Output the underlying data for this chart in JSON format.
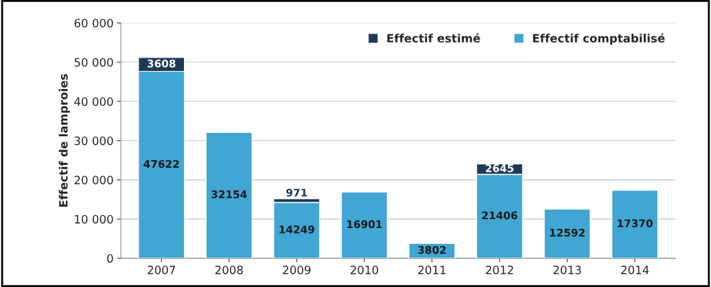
{
  "chart_data": {
    "type": "bar",
    "stacked": true,
    "ylabel": "Effectif de lamproies",
    "categories": [
      "2007",
      "2008",
      "2009",
      "2010",
      "2011",
      "2012",
      "2013",
      "2014"
    ],
    "series": [
      {
        "name": "Effectif comptabilisé",
        "color": "#41a6d3",
        "values": [
          47622,
          32154,
          14249,
          16901,
          3802,
          21406,
          12592,
          17370
        ]
      },
      {
        "name": "Effectif estimé",
        "color": "#1d3a57",
        "values": [
          3608,
          null,
          971,
          null,
          null,
          2645,
          null,
          null
        ]
      }
    ],
    "ylim": [
      0,
      60000
    ],
    "yticks": [
      {
        "value": 0,
        "label": "0"
      },
      {
        "value": 10000,
        "label": "10 000"
      },
      {
        "value": 20000,
        "label": "20 000"
      },
      {
        "value": 30000,
        "label": "30 000"
      },
      {
        "value": 40000,
        "label": "40 000"
      },
      {
        "value": 50000,
        "label": "50 000"
      },
      {
        "value": 60000,
        "label": "60 000"
      }
    ],
    "data_labels": true,
    "grid": "y",
    "legend": "top right"
  }
}
